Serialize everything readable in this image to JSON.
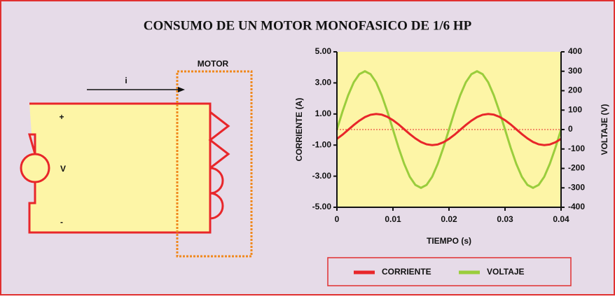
{
  "chart_data": {
    "type": "line",
    "title": "CONSUMO DE UN MOTOR MONOFASICO DE 1/6 HP",
    "x_label": "TIEMPO (s)",
    "y_label": "CORRIENTE (A)",
    "y2_label": "VOLTAJE  (V)",
    "x": [
      0,
      0.001,
      0.002,
      0.003,
      0.004,
      0.005,
      0.006,
      0.007,
      0.008,
      0.009,
      0.01,
      0.011,
      0.012,
      0.013,
      0.014,
      0.015,
      0.016,
      0.017,
      0.018,
      0.019,
      0.02,
      0.021,
      0.022,
      0.023,
      0.024,
      0.025,
      0.026,
      0.027,
      0.028,
      0.029,
      0.03,
      0.031,
      0.032,
      0.033,
      0.034,
      0.035,
      0.036,
      0.037,
      0.038,
      0.039,
      0.04
    ],
    "series": [
      {
        "name": "CORRIENTE",
        "color": "#e8262a",
        "values": [
          -0.6,
          -0.33,
          -0.02,
          0.29,
          0.57,
          0.8,
          0.95,
          1.0,
          0.96,
          0.82,
          0.6,
          0.33,
          0.02,
          -0.29,
          -0.57,
          -0.8,
          -0.95,
          -1.0,
          -0.96,
          -0.82,
          -0.6,
          -0.33,
          -0.02,
          0.29,
          0.57,
          0.8,
          0.95,
          1.0,
          0.96,
          0.82,
          0.6,
          0.33,
          0.02,
          -0.29,
          -0.57,
          -0.8,
          -0.95,
          -1.0,
          -0.96,
          -0.82,
          -0.6
        ]
      },
      {
        "name": "VOLTAJE",
        "color": "#9acd3c",
        "axis": "y2",
        "values": [
          0,
          93,
          176,
          243,
          285,
          300,
          285,
          243,
          176,
          93,
          0,
          -93,
          -176,
          -243,
          -285,
          -300,
          -285,
          -243,
          -176,
          -93,
          0,
          93,
          176,
          243,
          285,
          300,
          285,
          243,
          176,
          93,
          0,
          -93,
          -176,
          -243,
          -285,
          -300,
          -285,
          -243,
          -176,
          -93,
          0
        ]
      }
    ],
    "xlim": [
      0,
      0.04
    ],
    "xticks": [
      0,
      0.01,
      0.02,
      0.03,
      0.04
    ],
    "ylim": [
      -5,
      5
    ],
    "yticks": [
      {
        "value": -5,
        "label": "-5.00"
      },
      {
        "value": -3,
        "label": "-3.00"
      },
      {
        "value": -1,
        "label": "-1.00"
      },
      {
        "value": 1,
        "label": "1.00"
      },
      {
        "value": 3,
        "label": "3.00"
      },
      {
        "value": 5,
        "label": "5.00"
      }
    ],
    "y2lim": [
      -400,
      400
    ],
    "y2ticks": [
      -400,
      -300,
      -200,
      -100,
      0,
      100,
      200,
      300,
      400
    ],
    "legend": "bottom"
  },
  "circuit": {
    "motor_label": "MOTOR",
    "current_label": "i",
    "plus": "+",
    "voltage_label": "V",
    "minus": "-"
  }
}
